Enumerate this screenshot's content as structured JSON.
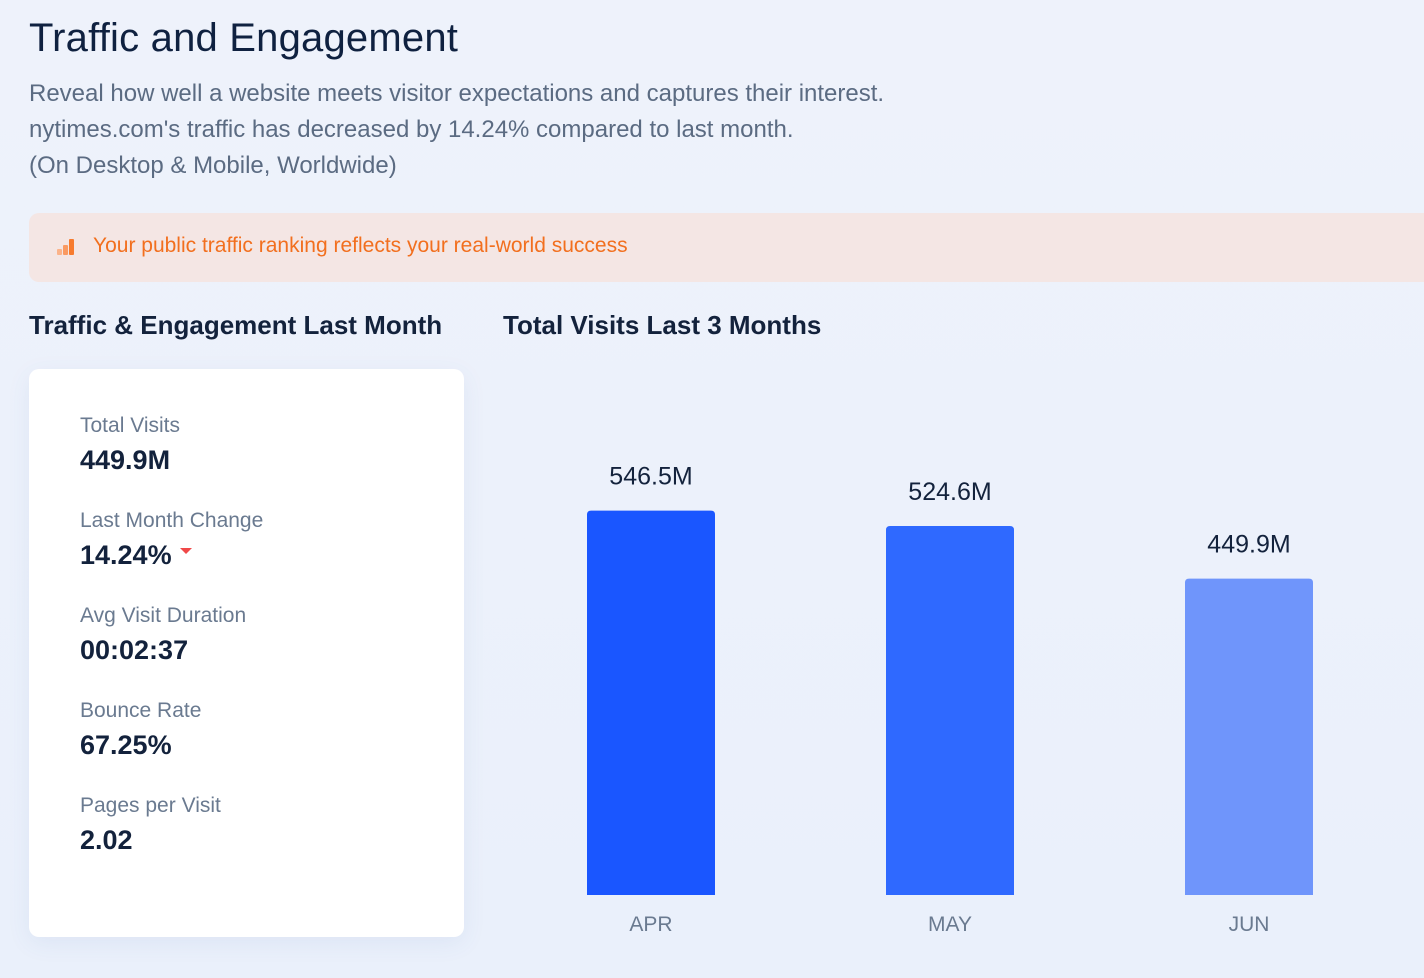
{
  "header": {
    "title": "Traffic and Engagement",
    "description_1": "Reveal how well a website meets visitor expectations and captures their interest.",
    "description_2": "nytimes.com's traffic has decreased by 14.24% compared to last month.",
    "description_3": "(On Desktop & Mobile, Worldwide)"
  },
  "banner": {
    "icon": "bar-chart-icon",
    "text": "Your public traffic ranking reflects your real-world success",
    "color": "#f26f1e"
  },
  "sections": {
    "left_title": "Traffic & Engagement Last Month",
    "right_title": "Total Visits Last 3 Months"
  },
  "metrics": [
    {
      "label": "Total Visits",
      "value": "449.9M"
    },
    {
      "label": "Last Month Change",
      "value": "14.24%",
      "trend_icon": "down-arrow-icon",
      "trend_color": "#f04848"
    },
    {
      "label": "Avg Visit Duration",
      "value": "00:02:37"
    },
    {
      "label": "Bounce Rate",
      "value": "67.25%"
    },
    {
      "label": "Pages per Visit",
      "value": "2.02"
    }
  ],
  "chart_data": {
    "type": "bar",
    "categories": [
      "APR",
      "MAY",
      "JUN"
    ],
    "values": [
      546.5,
      524.6,
      449.9
    ],
    "value_labels": [
      "546.5M",
      "524.6M",
      "449.9M"
    ],
    "bar_colors": [
      "#1a56ff",
      "#2f69ff",
      "#6f95fb"
    ],
    "title": "Total Visits Last 3 Months",
    "xlabel": "",
    "ylabel": "",
    "ylim": [
      0,
      600
    ],
    "grid": false,
    "legend": "none"
  }
}
